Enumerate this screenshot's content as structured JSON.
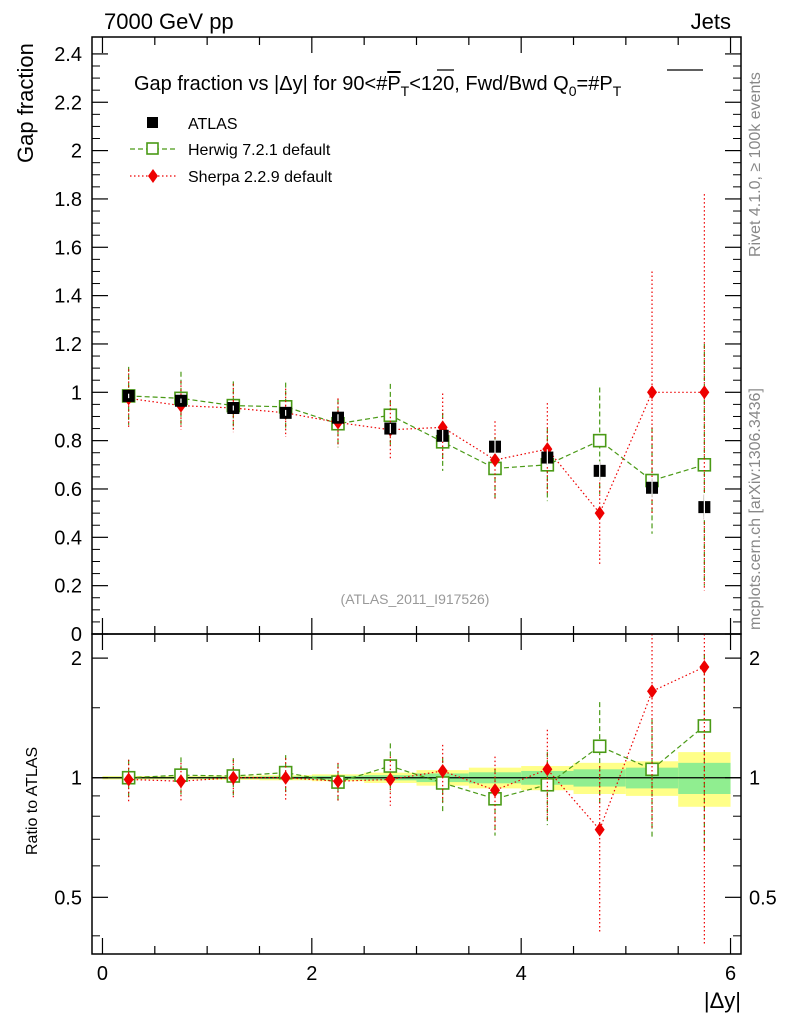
{
  "header": {
    "energy_label": "7000 GeV pp",
    "category_label": "Jets"
  },
  "side_notes": {
    "rivet": "Rivet 4.1.0, ≥ 100k events",
    "mcplots": "mcplots.cern.ch [arXiv:1306.3436]"
  },
  "chart_data": [
    {
      "type": "scatter",
      "title_parts": {
        "pre": "Gap fraction vs |Δy| for 90<#",
        "pt": "P",
        "pt_sub": "T",
        "mid": "<120, Fwd/Bwd Q",
        "q_sub": "0",
        "post": "=#",
        "pt2": "P",
        "pt2_sub": "T"
      },
      "ylabel": "Gap fraction",
      "xlabel": "|Δy|",
      "watermark": "(ATLAS_2011_I917526)",
      "xlim": [
        -0.1,
        6.1
      ],
      "ylim": [
        0,
        2.47
      ],
      "yticks": [
        0,
        0.2,
        0.4,
        0.6,
        0.8,
        1,
        1.2,
        1.4,
        1.6,
        1.8,
        2,
        2.2,
        2.4
      ],
      "ytick_labels": [
        "0",
        "0.2",
        "0.4",
        "0.6",
        "0.8",
        "1",
        "1.2",
        "1.4",
        "1.6",
        "1.8",
        "2",
        "2.2",
        "2.4"
      ],
      "series": [
        {
          "name": "ATLAS",
          "color": "#000000",
          "marker": "square",
          "x": [
            0.25,
            0.75,
            1.25,
            1.75,
            2.25,
            2.75,
            3.25,
            3.75,
            4.25,
            4.75,
            5.25,
            5.75
          ],
          "y": [
            0.985,
            0.965,
            0.935,
            0.915,
            0.895,
            0.85,
            0.82,
            0.775,
            0.73,
            0.675,
            0.605,
            0.525
          ],
          "err": [
            0.005,
            0.005,
            0.006,
            0.008,
            0.01,
            0.015,
            0.02,
            0.025,
            0.03,
            0.035,
            0.04,
            0.05
          ]
        },
        {
          "name": "Herwig 7.2.1 default",
          "color": "#4a9a16",
          "marker": "open-square",
          "line": "dashed",
          "x": [
            0.25,
            0.75,
            1.25,
            1.75,
            2.25,
            2.75,
            3.25,
            3.75,
            4.25,
            4.75,
            5.25,
            5.75
          ],
          "y": [
            0.985,
            0.975,
            0.945,
            0.94,
            0.87,
            0.905,
            0.795,
            0.685,
            0.7,
            0.8,
            0.635,
            0.7
          ],
          "err": [
            0.12,
            0.11,
            0.1,
            0.1,
            0.1,
            0.13,
            0.12,
            0.13,
            0.15,
            0.22,
            0.22,
            0.5
          ]
        },
        {
          "name": "Sherpa 2.2.9 default",
          "color": "#ee0000",
          "marker": "diamond",
          "line": "dotted",
          "x": [
            0.25,
            0.75,
            1.25,
            1.75,
            2.25,
            2.75,
            3.25,
            3.75,
            4.25,
            4.75,
            5.25,
            5.75
          ],
          "y": [
            0.975,
            0.945,
            0.935,
            0.915,
            0.875,
            0.845,
            0.855,
            0.72,
            0.765,
            0.5,
            1.0,
            1.0
          ],
          "err": [
            0.12,
            0.1,
            0.1,
            0.1,
            0.1,
            0.12,
            0.14,
            0.16,
            0.19,
            0.21,
            0.5,
            0.82
          ]
        }
      ]
    },
    {
      "type": "scatter",
      "ylabel": "Ratio to ATLAS",
      "xlabel": "|Δy|",
      "xlim": [
        -0.1,
        6.1
      ],
      "ylim": [
        0.36,
        2.3
      ],
      "log_y": true,
      "yticks": [
        0.5,
        1,
        2
      ],
      "ytick_labels": [
        "0.5",
        "1",
        "2"
      ],
      "xticks": [
        0,
        2,
        4,
        6
      ],
      "xtick_labels": [
        "0",
        "2",
        "4",
        "6"
      ],
      "bands": {
        "x_edges": [
          0,
          0.5,
          1,
          1.5,
          2,
          2.5,
          3,
          3.5,
          4,
          4.5,
          5,
          5.5,
          6
        ],
        "inner_lo": [
          0.995,
          0.995,
          0.994,
          0.992,
          0.989,
          0.985,
          0.975,
          0.968,
          0.96,
          0.95,
          0.94,
          0.91
        ],
        "inner_hi": [
          1.005,
          1.005,
          1.006,
          1.008,
          1.011,
          1.015,
          1.025,
          1.032,
          1.04,
          1.05,
          1.06,
          1.09
        ],
        "outer_lo": [
          0.99,
          0.99,
          0.988,
          0.985,
          0.98,
          0.97,
          0.955,
          0.94,
          0.93,
          0.91,
          0.9,
          0.845
        ],
        "outer_hi": [
          1.01,
          1.01,
          1.012,
          1.015,
          1.02,
          1.03,
          1.045,
          1.06,
          1.07,
          1.09,
          1.1,
          1.16
        ],
        "inner_color": "#90ee90",
        "outer_color": "#ffff88"
      },
      "series": [
        {
          "name": "Herwig 7.2.1 default",
          "color": "#4a9a16",
          "marker": "open-square",
          "line": "dashed",
          "x": [
            0.25,
            0.75,
            1.25,
            1.75,
            2.25,
            2.75,
            3.25,
            3.75,
            4.25,
            4.75,
            5.25,
            5.75
          ],
          "y": [
            1.0,
            1.015,
            1.01,
            1.03,
            0.975,
            1.07,
            0.97,
            0.885,
            0.96,
            1.2,
            1.05,
            1.35
          ],
          "err": [
            0.11,
            0.11,
            0.11,
            0.11,
            0.11,
            0.15,
            0.15,
            0.17,
            0.2,
            0.35,
            0.35,
            0.7
          ]
        },
        {
          "name": "Sherpa 2.2.9 default",
          "color": "#ee0000",
          "marker": "diamond",
          "line": "dotted",
          "x": [
            0.25,
            0.75,
            1.25,
            1.75,
            2.25,
            2.75,
            3.25,
            3.75,
            4.25,
            4.75,
            5.25,
            5.75
          ],
          "y": [
            0.99,
            0.98,
            1.0,
            1.0,
            0.98,
            0.99,
            1.04,
            0.93,
            1.05,
            0.74,
            1.65,
            1.9
          ],
          "err": [
            0.12,
            0.11,
            0.11,
            0.12,
            0.11,
            0.14,
            0.17,
            0.2,
            0.27,
            0.33,
            0.9,
            1.52
          ]
        }
      ]
    }
  ]
}
